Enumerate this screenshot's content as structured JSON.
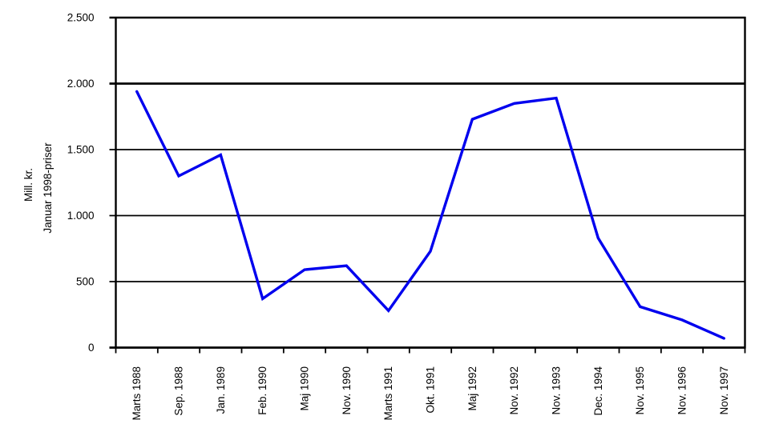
{
  "chart_data": {
    "type": "line",
    "title": "",
    "categories": [
      "Marts 1988",
      "Sep. 1988",
      "Jan. 1989",
      "Feb. 1990",
      "Maj 1990",
      "Nov. 1990",
      "Marts 1991",
      "Okt. 1991",
      "Maj 1992",
      "Nov. 1992",
      "Nov. 1993",
      "Dec. 1994",
      "Nov. 1995",
      "Nov. 1996",
      "Nov. 1997"
    ],
    "values": [
      1940,
      1300,
      1460,
      370,
      590,
      620,
      280,
      730,
      1730,
      1850,
      1890,
      830,
      310,
      210,
      70
    ],
    "ylabel_line1": "Mill. kr.",
    "ylabel_line2": "Januar 1998-priser",
    "xlabel": "",
    "ylim": [
      0,
      2500
    ],
    "ytick_step": 500,
    "ytick_labels": [
      "0",
      "500",
      "1.000",
      "1.500",
      "2.000",
      "2.500"
    ],
    "grid": "horizontal",
    "legend": "none",
    "colors": {
      "line": "#0000EE",
      "axis": "#000000",
      "text": "#000000",
      "background": "#FFFFFF"
    }
  }
}
